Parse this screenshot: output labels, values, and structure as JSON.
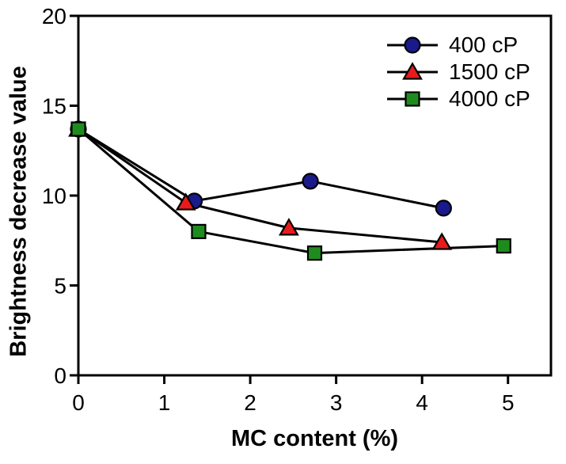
{
  "page": {
    "background": "#ffffff",
    "axis_color": "#000000"
  },
  "chart_data": {
    "type": "line",
    "title": "",
    "xlabel": "MC content (%)",
    "ylabel": "Brightness decrease value",
    "xlim": [
      0,
      5.5
    ],
    "ylim": [
      0,
      20
    ],
    "x_ticks": [
      0,
      1,
      2,
      3,
      4,
      5
    ],
    "y_ticks": [
      0,
      5,
      10,
      15,
      20
    ],
    "grid": false,
    "legend_position": "top-right",
    "line_color": "#000000",
    "series": [
      {
        "name": "400 cP",
        "marker": "circle",
        "color": "#1a1a8c",
        "x": [
          0,
          1.35,
          2.7,
          4.25
        ],
        "y": [
          13.7,
          9.7,
          10.8,
          9.3
        ]
      },
      {
        "name": "1500 cP",
        "marker": "triangle",
        "color": "#e81b1b",
        "x": [
          0,
          1.25,
          2.45,
          4.23
        ],
        "y": [
          13.7,
          9.6,
          8.2,
          7.4
        ]
      },
      {
        "name": "4000 cP",
        "marker": "square",
        "color": "#1f8b1f",
        "x": [
          0,
          1.4,
          2.75,
          4.95
        ],
        "y": [
          13.7,
          8.0,
          6.8,
          7.2
        ]
      }
    ]
  }
}
